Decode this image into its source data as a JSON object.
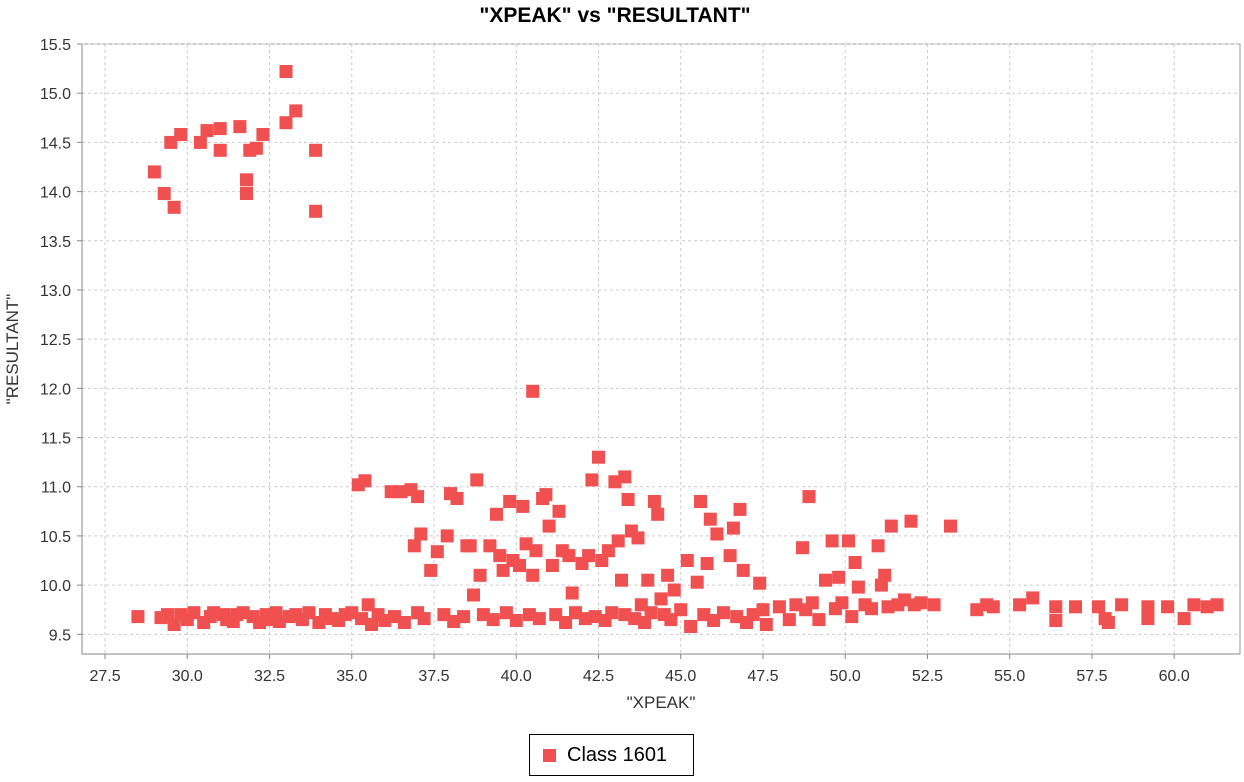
{
  "chart_data": {
    "type": "scatter",
    "title": "\"XPEAK\" vs \"RESULTANT\"",
    "xlabel": "\"XPEAK\"",
    "ylabel": "\"RESULTANT\"",
    "xlim": [
      26.8,
      62.0
    ],
    "ylim": [
      9.3,
      15.5
    ],
    "xticks": [
      "27.5",
      "30.0",
      "32.5",
      "35.0",
      "37.5",
      "40.0",
      "42.5",
      "45.0",
      "47.5",
      "50.0",
      "52.5",
      "55.0",
      "57.5",
      "60.0"
    ],
    "yticks": [
      "9.5",
      "10.0",
      "10.5",
      "11.0",
      "11.5",
      "12.0",
      "12.5",
      "13.0",
      "13.5",
      "14.0",
      "14.5",
      "15.0",
      "15.5"
    ],
    "grid": true,
    "legend_position": "bottom",
    "color": "#f05050",
    "series": [
      {
        "name": "Class 1601",
        "points": [
          [
            28.5,
            9.68
          ],
          [
            29.0,
            14.2
          ],
          [
            29.2,
            9.67
          ],
          [
            29.3,
            13.98
          ],
          [
            29.4,
            9.7
          ],
          [
            29.5,
            14.5
          ],
          [
            29.6,
            9.6
          ],
          [
            29.6,
            13.84
          ],
          [
            29.8,
            14.58
          ],
          [
            29.8,
            9.7
          ],
          [
            30.0,
            9.65
          ],
          [
            30.2,
            9.72
          ],
          [
            30.4,
            14.5
          ],
          [
            30.5,
            9.62
          ],
          [
            30.6,
            14.62
          ],
          [
            30.7,
            9.68
          ],
          [
            30.8,
            9.72
          ],
          [
            31.0,
            14.64
          ],
          [
            31.0,
            14.42
          ],
          [
            31.1,
            9.7
          ],
          [
            31.2,
            9.65
          ],
          [
            31.4,
            9.63
          ],
          [
            31.5,
            9.7
          ],
          [
            31.6,
            14.66
          ],
          [
            31.7,
            9.72
          ],
          [
            31.8,
            14.12
          ],
          [
            31.8,
            13.98
          ],
          [
            31.9,
            14.42
          ],
          [
            32.0,
            9.68
          ],
          [
            32.1,
            14.44
          ],
          [
            32.2,
            9.62
          ],
          [
            32.3,
            14.58
          ],
          [
            32.4,
            9.7
          ],
          [
            32.5,
            9.65
          ],
          [
            32.7,
            9.72
          ],
          [
            32.8,
            9.63
          ],
          [
            33.0,
            15.22
          ],
          [
            33.0,
            14.7
          ],
          [
            33.1,
            9.68
          ],
          [
            33.3,
            14.82
          ],
          [
            33.3,
            9.7
          ],
          [
            33.5,
            9.65
          ],
          [
            33.7,
            9.72
          ],
          [
            33.9,
            14.42
          ],
          [
            33.9,
            13.8
          ],
          [
            34.0,
            9.62
          ],
          [
            34.2,
            9.7
          ],
          [
            34.4,
            9.66
          ],
          [
            34.6,
            9.64
          ],
          [
            34.8,
            9.7
          ],
          [
            35.0,
            9.72
          ],
          [
            35.2,
            11.02
          ],
          [
            35.3,
            9.66
          ],
          [
            35.4,
            11.06
          ],
          [
            35.5,
            9.8
          ],
          [
            35.6,
            9.6
          ],
          [
            35.8,
            9.7
          ],
          [
            36.0,
            9.64
          ],
          [
            36.2,
            10.95
          ],
          [
            36.3,
            9.68
          ],
          [
            36.5,
            10.95
          ],
          [
            36.6,
            9.62
          ],
          [
            36.8,
            10.97
          ],
          [
            36.9,
            10.4
          ],
          [
            37.0,
            10.9
          ],
          [
            37.0,
            9.72
          ],
          [
            37.1,
            10.52
          ],
          [
            37.2,
            9.66
          ],
          [
            37.4,
            10.15
          ],
          [
            37.6,
            10.34
          ],
          [
            37.8,
            9.7
          ],
          [
            37.9,
            10.5
          ],
          [
            38.0,
            10.93
          ],
          [
            38.1,
            9.63
          ],
          [
            38.2,
            10.88
          ],
          [
            38.4,
            9.68
          ],
          [
            38.5,
            10.4
          ],
          [
            38.6,
            10.4
          ],
          [
            38.7,
            9.9
          ],
          [
            38.8,
            11.07
          ],
          [
            38.9,
            10.1
          ],
          [
            39.0,
            9.7
          ],
          [
            39.2,
            10.4
          ],
          [
            39.3,
            9.65
          ],
          [
            39.4,
            10.72
          ],
          [
            39.5,
            10.3
          ],
          [
            39.6,
            10.15
          ],
          [
            39.7,
            9.72
          ],
          [
            39.8,
            10.85
          ],
          [
            39.9,
            10.25
          ],
          [
            40.0,
            9.64
          ],
          [
            40.1,
            10.2
          ],
          [
            40.2,
            10.8
          ],
          [
            40.3,
            10.42
          ],
          [
            40.4,
            9.7
          ],
          [
            40.5,
            10.1
          ],
          [
            40.5,
            11.97
          ],
          [
            40.6,
            10.35
          ],
          [
            40.7,
            9.66
          ],
          [
            40.8,
            10.88
          ],
          [
            40.9,
            10.92
          ],
          [
            41.0,
            10.6
          ],
          [
            41.1,
            10.2
          ],
          [
            41.2,
            9.7
          ],
          [
            41.3,
            10.75
          ],
          [
            41.4,
            10.35
          ],
          [
            41.5,
            9.62
          ],
          [
            41.6,
            10.3
          ],
          [
            41.7,
            9.92
          ],
          [
            41.8,
            9.72
          ],
          [
            42.0,
            10.22
          ],
          [
            42.1,
            9.66
          ],
          [
            42.2,
            10.3
          ],
          [
            42.3,
            11.07
          ],
          [
            42.4,
            9.68
          ],
          [
            42.5,
            11.3
          ],
          [
            42.6,
            10.25
          ],
          [
            42.7,
            9.64
          ],
          [
            42.8,
            10.35
          ],
          [
            42.9,
            9.72
          ],
          [
            43.0,
            11.05
          ],
          [
            43.1,
            10.45
          ],
          [
            43.2,
            10.05
          ],
          [
            43.3,
            11.1
          ],
          [
            43.3,
            9.7
          ],
          [
            43.4,
            10.87
          ],
          [
            43.5,
            10.55
          ],
          [
            43.6,
            9.66
          ],
          [
            43.7,
            10.48
          ],
          [
            43.8,
            9.8
          ],
          [
            43.9,
            9.62
          ],
          [
            44.0,
            10.05
          ],
          [
            44.1,
            9.72
          ],
          [
            44.2,
            10.85
          ],
          [
            44.3,
            10.72
          ],
          [
            44.4,
            9.86
          ],
          [
            44.5,
            9.7
          ],
          [
            44.6,
            10.1
          ],
          [
            44.7,
            9.65
          ],
          [
            44.8,
            9.95
          ],
          [
            45.0,
            9.75
          ],
          [
            45.2,
            10.25
          ],
          [
            45.3,
            9.58
          ],
          [
            45.5,
            10.03
          ],
          [
            45.6,
            10.85
          ],
          [
            45.7,
            9.7
          ],
          [
            45.8,
            10.22
          ],
          [
            45.9,
            10.67
          ],
          [
            46.0,
            9.64
          ],
          [
            46.1,
            10.52
          ],
          [
            46.3,
            9.72
          ],
          [
            46.5,
            10.3
          ],
          [
            46.6,
            10.58
          ],
          [
            46.7,
            9.68
          ],
          [
            46.8,
            10.77
          ],
          [
            46.9,
            10.15
          ],
          [
            47.0,
            9.62
          ],
          [
            47.2,
            9.7
          ],
          [
            47.4,
            10.02
          ],
          [
            47.5,
            9.75
          ],
          [
            47.6,
            9.6
          ],
          [
            48.0,
            9.78
          ],
          [
            48.3,
            9.65
          ],
          [
            48.5,
            9.8
          ],
          [
            48.7,
            10.38
          ],
          [
            48.8,
            9.75
          ],
          [
            48.9,
            10.9
          ],
          [
            49.0,
            9.82
          ],
          [
            49.2,
            9.65
          ],
          [
            49.4,
            10.05
          ],
          [
            49.6,
            10.45
          ],
          [
            49.7,
            9.76
          ],
          [
            49.8,
            10.08
          ],
          [
            49.9,
            9.82
          ],
          [
            50.1,
            10.45
          ],
          [
            50.2,
            9.68
          ],
          [
            50.3,
            10.23
          ],
          [
            50.4,
            9.98
          ],
          [
            50.6,
            9.8
          ],
          [
            50.8,
            9.76
          ],
          [
            51.0,
            10.4
          ],
          [
            51.1,
            10.0
          ],
          [
            51.2,
            10.1
          ],
          [
            51.3,
            9.78
          ],
          [
            51.4,
            10.6
          ],
          [
            51.6,
            9.8
          ],
          [
            51.8,
            9.85
          ],
          [
            52.0,
            10.65
          ],
          [
            52.1,
            9.8
          ],
          [
            52.3,
            9.82
          ],
          [
            52.7,
            9.8
          ],
          [
            53.2,
            10.6
          ],
          [
            54.0,
            9.75
          ],
          [
            54.3,
            9.8
          ],
          [
            54.5,
            9.78
          ],
          [
            55.3,
            9.8
          ],
          [
            55.7,
            9.87
          ],
          [
            56.4,
            9.78
          ],
          [
            56.4,
            9.64
          ],
          [
            57.0,
            9.78
          ],
          [
            57.7,
            9.78
          ],
          [
            57.9,
            9.66
          ],
          [
            58.0,
            9.62
          ],
          [
            58.4,
            9.8
          ],
          [
            59.2,
            9.78
          ],
          [
            59.2,
            9.66
          ],
          [
            59.8,
            9.78
          ],
          [
            60.3,
            9.66
          ],
          [
            60.6,
            9.8
          ],
          [
            61.0,
            9.78
          ],
          [
            61.3,
            9.8
          ]
        ]
      }
    ]
  }
}
